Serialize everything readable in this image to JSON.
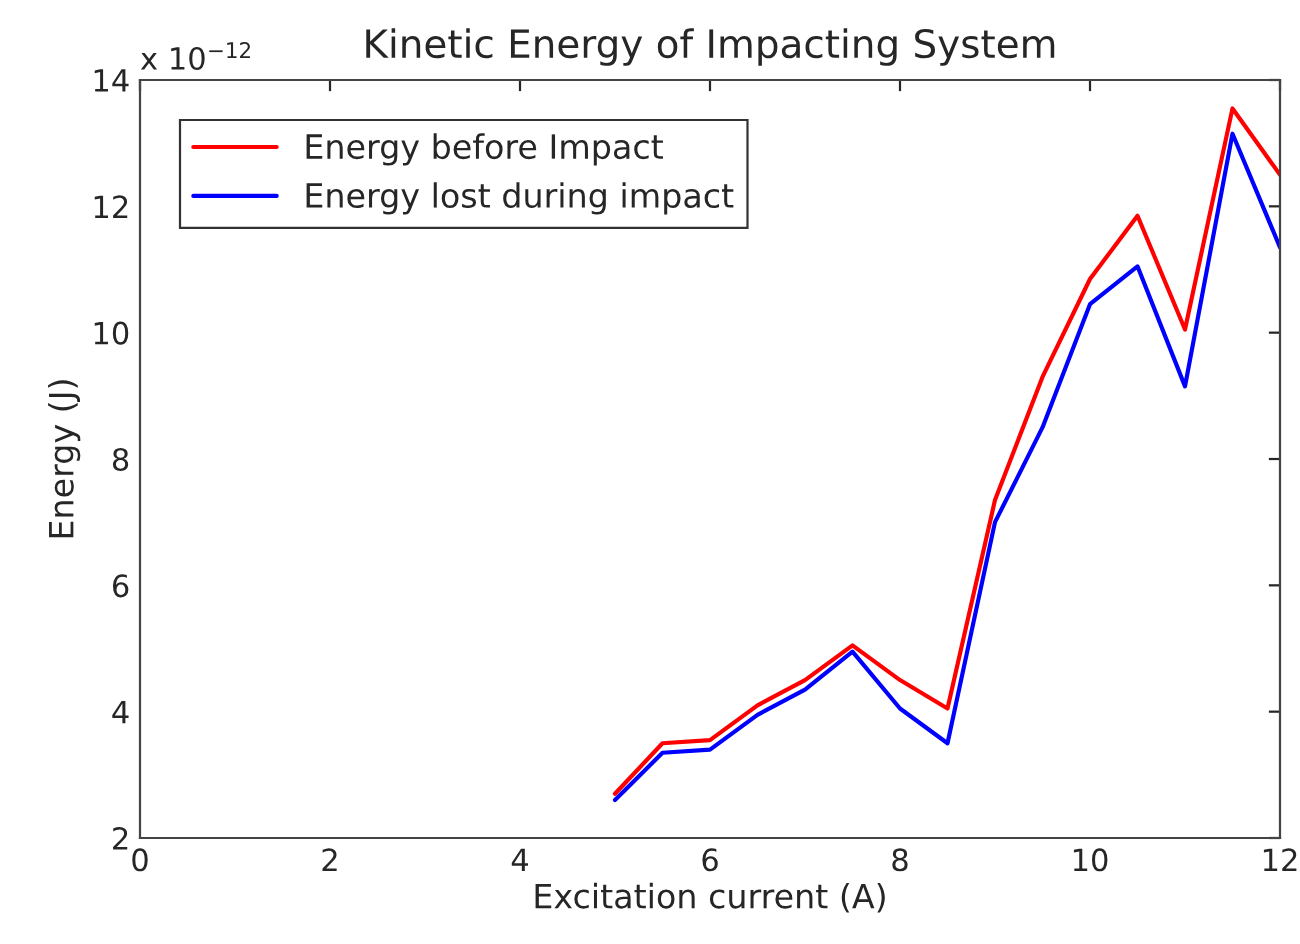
{
  "chart_data": {
    "type": "line",
    "title": "Kinetic Energy of Impacting System",
    "xlabel": "Excitation current (A)",
    "ylabel": "Energy (J)",
    "annotations": [
      "x 10$^{−12}$"
    ],
    "x": [
      5,
      5.5,
      6,
      6.5,
      7,
      7.5,
      8,
      8.5,
      9,
      9.5,
      10,
      10.5,
      11,
      11.5,
      12
    ],
    "series": [
      {
        "name": "Energy before Impact",
        "color": "#ff0000",
        "values": [
          2.7,
          3.5,
          3.55,
          4.1,
          4.5,
          5.05,
          4.5,
          4.05,
          7.35,
          9.3,
          10.85,
          11.85,
          10.05,
          13.55,
          12.5
        ]
      },
      {
        "name": "Energy lost during impact",
        "color": "#0000ff",
        "values": [
          2.6,
          3.35,
          3.4,
          3.95,
          4.35,
          4.95,
          4.05,
          3.5,
          7.0,
          8.5,
          10.45,
          11.05,
          9.15,
          13.15,
          11.35
        ]
      }
    ],
    "xlim": [
      0,
      12
    ],
    "xticks": [
      0,
      2,
      4,
      6,
      8,
      10,
      12
    ],
    "ylim": [
      2,
      14
    ],
    "yticks": [
      2,
      4,
      6,
      8,
      10,
      12,
      14
    ],
    "grid": false,
    "legend": "top left",
    "line_style": "solid",
    "marker": "none"
  }
}
